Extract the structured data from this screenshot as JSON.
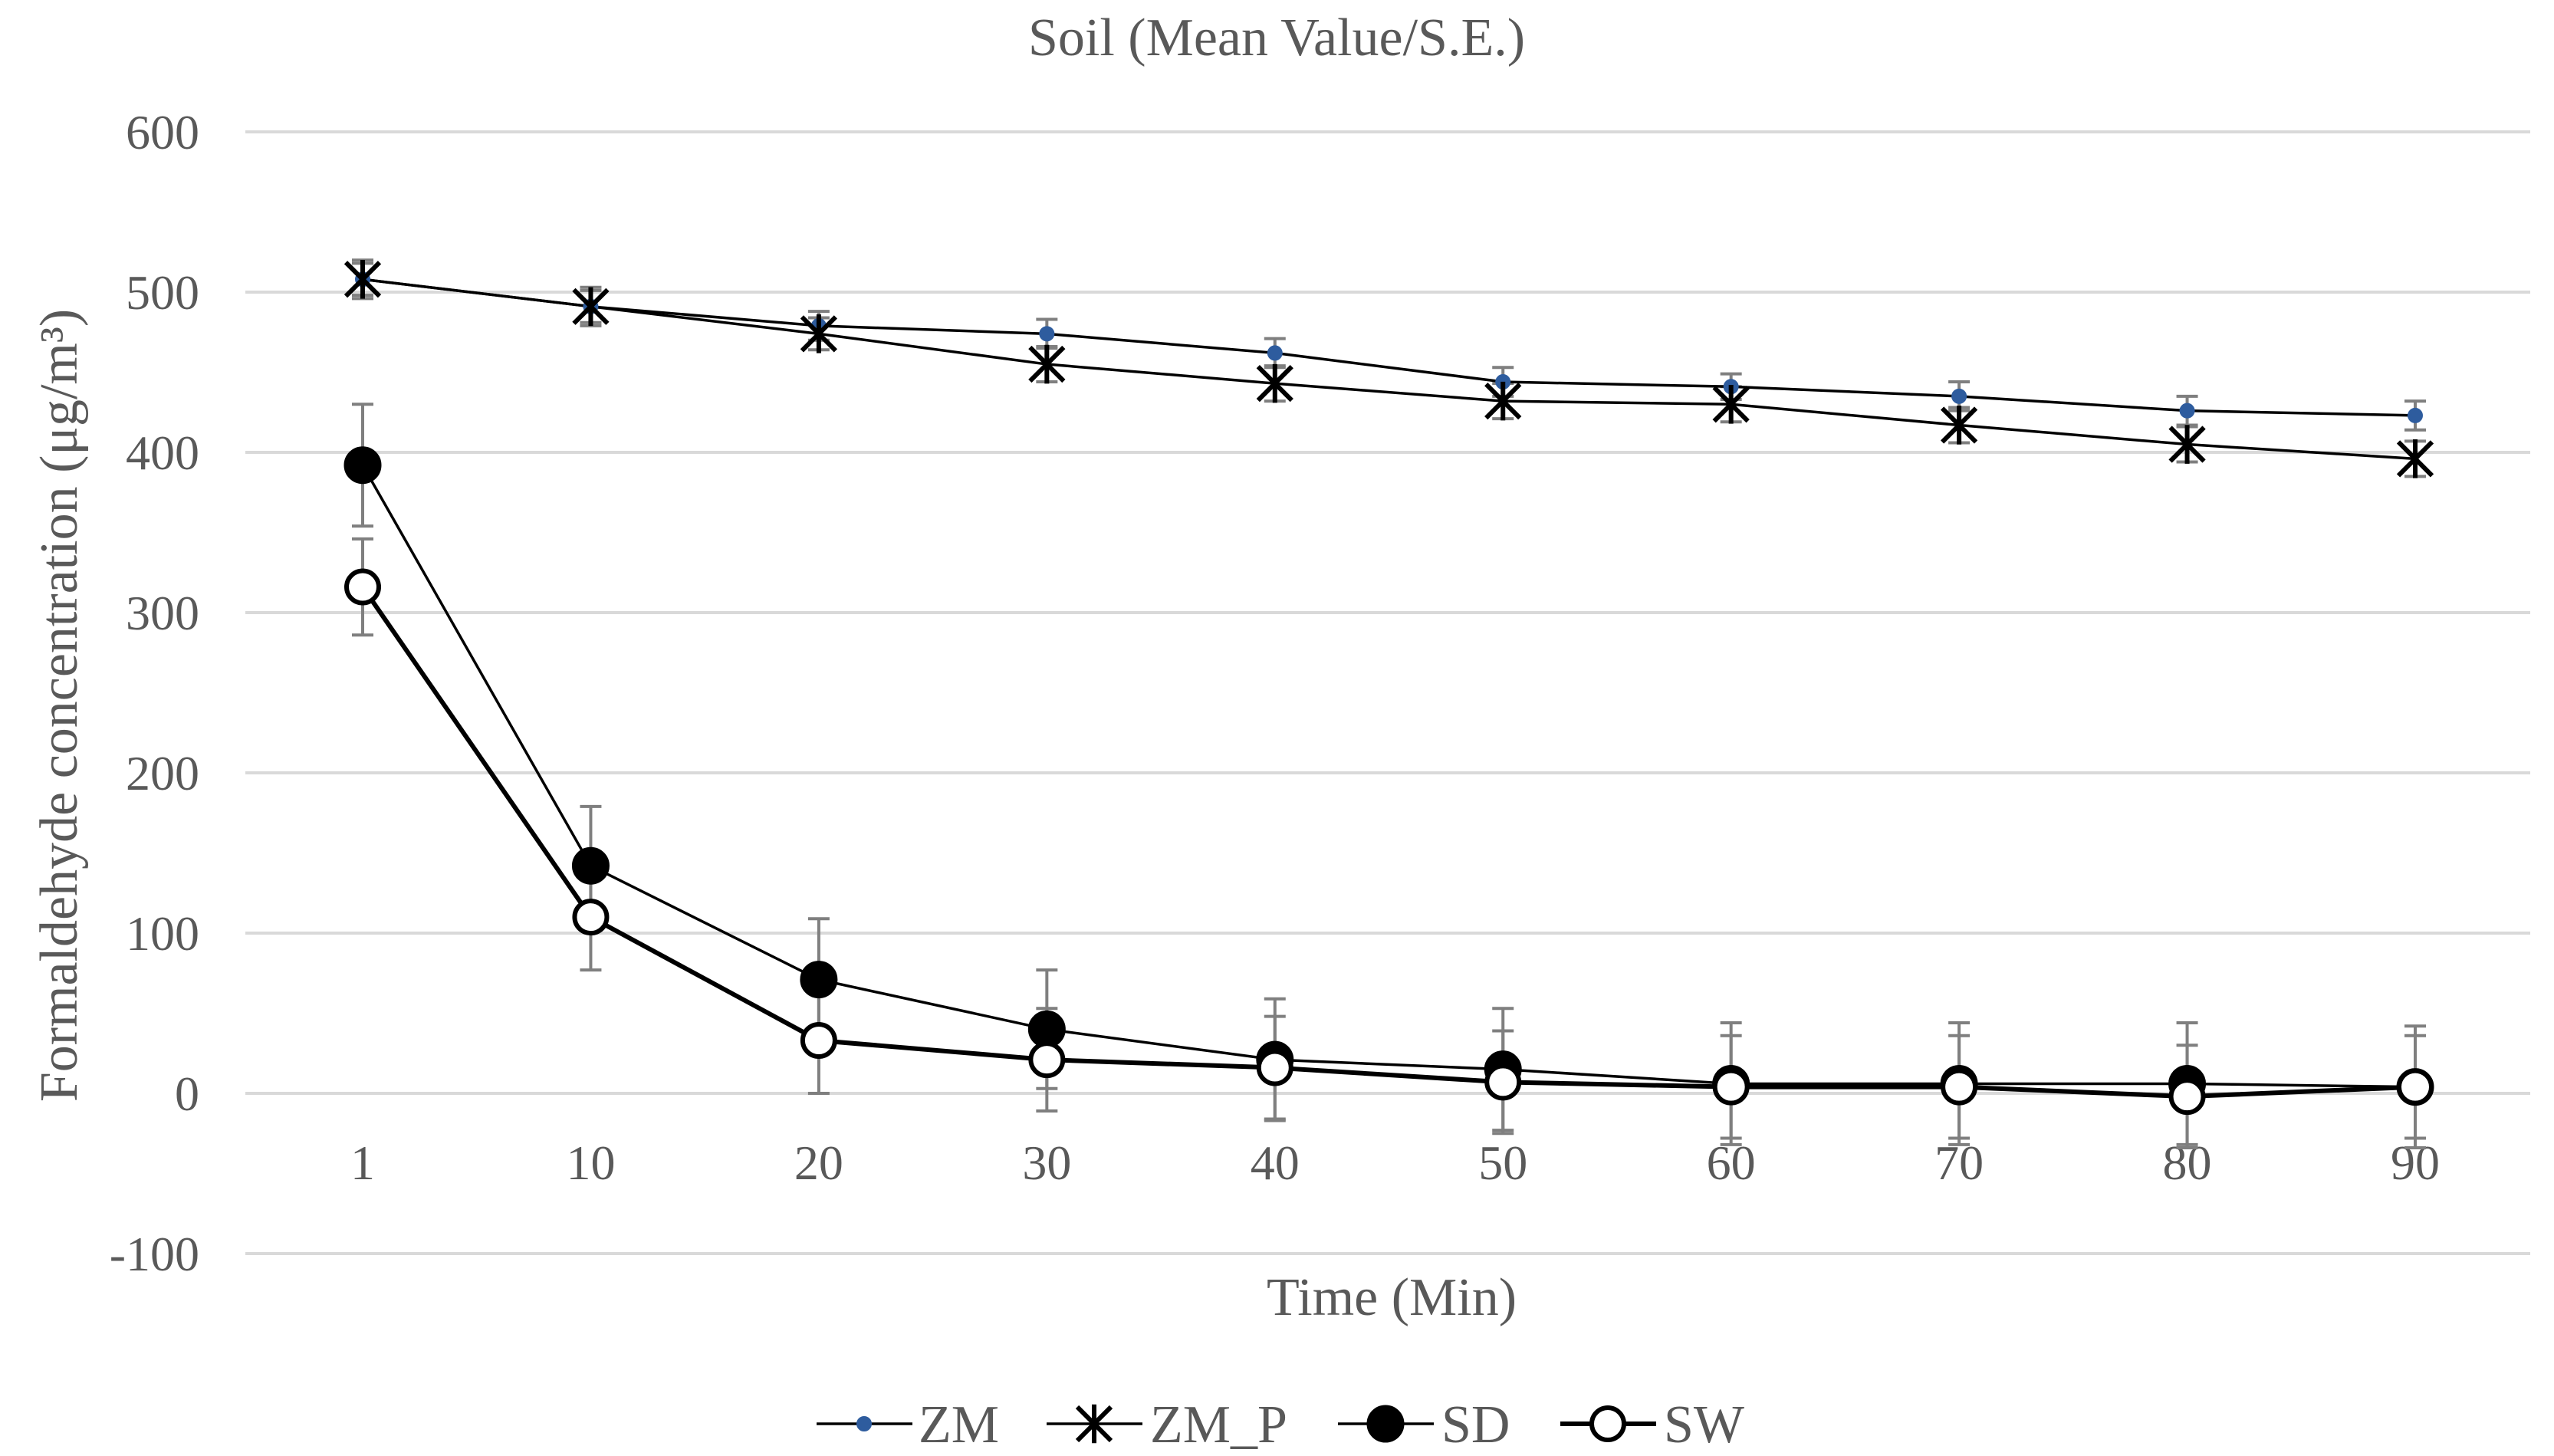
{
  "chart_data": {
    "type": "line",
    "title": "Soil (Mean Value/S.E.)",
    "xlabel": "Time (Min)",
    "ylabel": "Formaldehyde concentration (μg/m³)",
    "categories": [
      "1",
      "10",
      "20",
      "30",
      "40",
      "50",
      "60",
      "70",
      "80",
      "90"
    ],
    "ylim": [
      -100,
      600
    ],
    "yticks": [
      -100,
      0,
      100,
      200,
      300,
      400,
      500,
      600
    ],
    "grid": true,
    "legend_position": "bottom",
    "series": [
      {
        "name": "ZM",
        "marker": "small-dot",
        "color": "#2E5C9E",
        "values": [
          508,
          491,
          479,
          474,
          462,
          444,
          441,
          435,
          426,
          423
        ],
        "error": [
          10,
          10,
          9,
          9,
          9,
          9,
          8,
          9,
          9,
          9
        ]
      },
      {
        "name": "ZM_P",
        "marker": "asterisk",
        "color": "#000000",
        "values": [
          508,
          491,
          474,
          455,
          443,
          432,
          430,
          417,
          405,
          396
        ],
        "error": [
          12,
          12,
          10,
          11,
          11,
          11,
          11,
          11,
          11,
          11
        ]
      },
      {
        "name": "SD",
        "marker": "filled-circle",
        "color": "#000000",
        "values": [
          392,
          142,
          71,
          40,
          21,
          15,
          6,
          6,
          6,
          4
        ],
        "error": [
          38,
          37,
          38,
          37,
          38,
          38,
          38,
          38,
          38,
          38
        ]
      },
      {
        "name": "SW",
        "marker": "open-circle",
        "color": "#000000",
        "values": [
          316,
          110,
          33,
          21,
          16,
          7,
          4,
          4,
          -2,
          4
        ],
        "error": [
          30,
          33,
          33,
          32,
          32,
          32,
          32,
          32,
          32,
          32
        ]
      }
    ]
  }
}
